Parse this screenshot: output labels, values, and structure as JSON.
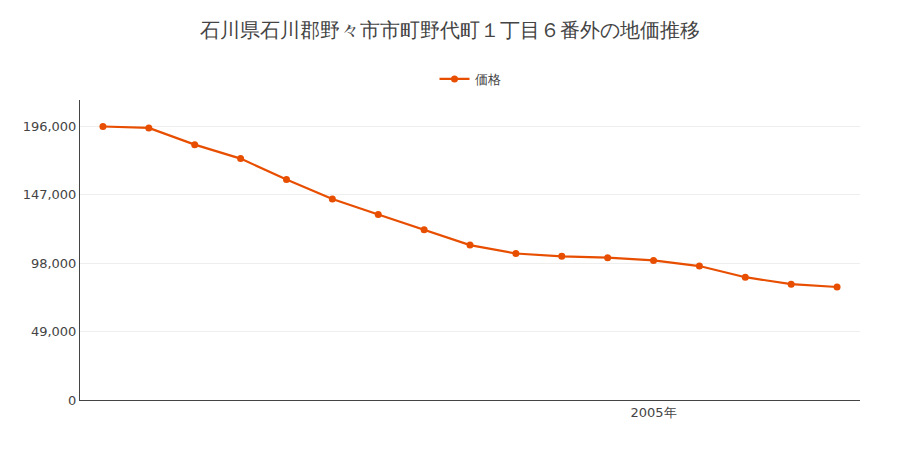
{
  "chart_data": {
    "type": "line",
    "title": "石川県石川郡野々市市町野代町１丁目６番外の地価推移",
    "x": [
      1993,
      1994,
      1995,
      1996,
      1997,
      1998,
      1999,
      2000,
      2001,
      2002,
      2003,
      2004,
      2005,
      2006,
      2007,
      2008,
      2009
    ],
    "series": [
      {
        "name": "価格",
        "color": "#e84e00",
        "marker": "circle",
        "values": [
          196000,
          195000,
          183000,
          173000,
          158000,
          144000,
          133000,
          122000,
          111000,
          105000,
          103000,
          102000,
          100000,
          96000,
          88000,
          83000,
          81000
        ]
      }
    ],
    "xlim": [
      1992.5,
      2009.5
    ],
    "xticks": [
      {
        "value": 2005,
        "label": "2005年"
      }
    ],
    "ylim": [
      0,
      215000
    ],
    "yticks": [
      0,
      {
        "value": 49000,
        "label": "49,000"
      },
      {
        "value": 98000,
        "label": "98,000"
      },
      {
        "value": 147000,
        "label": "147,000"
      },
      {
        "value": 196000,
        "label": "196,000"
      }
    ],
    "grid": "y",
    "legend": "upper center"
  }
}
